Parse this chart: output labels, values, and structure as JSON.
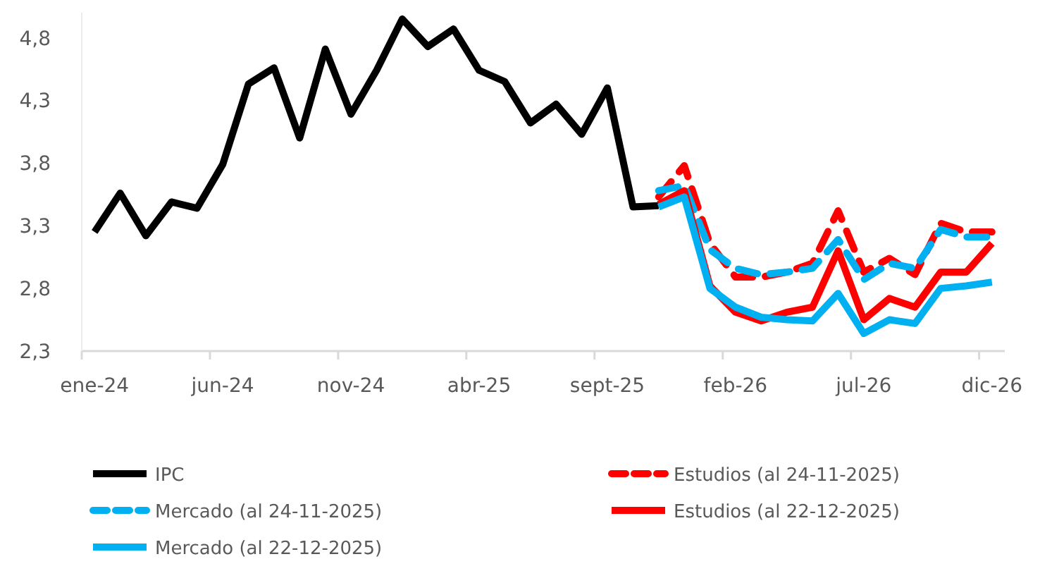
{
  "chart_data": {
    "type": "line",
    "categories": [
      "ene-24",
      null,
      null,
      null,
      null,
      "jun-24",
      null,
      null,
      null,
      null,
      "nov-24",
      null,
      null,
      null,
      null,
      "abr-25",
      null,
      null,
      null,
      null,
      "sept-25",
      null,
      null,
      null,
      null,
      "feb-26",
      null,
      null,
      null,
      null,
      "jul-26",
      null,
      null,
      null,
      null,
      "dic-26"
    ],
    "ylim": [
      2.3,
      5.0
    ],
    "yticks": [
      {
        "value": 2.3,
        "label": "2,3"
      },
      {
        "value": 2.8,
        "label": "2,8"
      },
      {
        "value": 3.3,
        "label": "3,3"
      },
      {
        "value": 3.8,
        "label": "3,8"
      },
      {
        "value": 4.3,
        "label": "4,3"
      },
      {
        "value": 4.8,
        "label": "4,8"
      }
    ],
    "legend": "bottom",
    "series": [
      {
        "name": "IPC",
        "color": "#000000",
        "line_style": "solid",
        "values": [
          3.25,
          3.56,
          3.22,
          3.49,
          3.44,
          3.79,
          4.43,
          4.56,
          4.0,
          4.71,
          4.19,
          4.54,
          4.95,
          4.73,
          4.87,
          4.54,
          4.45,
          4.12,
          4.27,
          4.03,
          4.4,
          3.45,
          3.46,
          null,
          null,
          null,
          null,
          null,
          null,
          null,
          null,
          null,
          null,
          null,
          null,
          null
        ]
      },
      {
        "name": "Estudios (al 24-11-2025)",
        "color": "#ff0000",
        "line_style": "dashed",
        "values": [
          null,
          null,
          null,
          null,
          null,
          null,
          null,
          null,
          null,
          null,
          null,
          null,
          null,
          null,
          null,
          null,
          null,
          null,
          null,
          null,
          null,
          null,
          3.53,
          3.78,
          3.16,
          2.89,
          2.89,
          2.93,
          3.0,
          3.42,
          2.93,
          3.04,
          2.91,
          3.32,
          3.25,
          3.25
        ]
      },
      {
        "name": "Mercado (al 24-11-2025)",
        "color": "#00b0f0",
        "line_style": "dashed",
        "values": [
          null,
          null,
          null,
          null,
          null,
          null,
          null,
          null,
          null,
          null,
          null,
          null,
          null,
          null,
          null,
          null,
          null,
          null,
          null,
          null,
          null,
          null,
          3.58,
          3.62,
          3.11,
          2.96,
          2.91,
          2.93,
          2.96,
          3.19,
          2.87,
          3.0,
          2.96,
          3.27,
          3.21,
          3.21
        ]
      },
      {
        "name": "Estudios (al 22-12-2025)",
        "color": "#ff0000",
        "line_style": "solid",
        "values": [
          null,
          null,
          null,
          null,
          null,
          null,
          null,
          null,
          null,
          null,
          null,
          null,
          null,
          null,
          null,
          null,
          null,
          null,
          null,
          null,
          null,
          null,
          3.47,
          3.58,
          2.82,
          2.61,
          2.54,
          2.61,
          2.65,
          3.1,
          2.55,
          2.72,
          2.65,
          2.93,
          2.93,
          3.16
        ]
      },
      {
        "name": "Mercado (al 22-12-2025)",
        "color": "#00b0f0",
        "line_style": "solid",
        "values": [
          null,
          null,
          null,
          null,
          null,
          null,
          null,
          null,
          null,
          null,
          null,
          null,
          null,
          null,
          null,
          null,
          null,
          null,
          null,
          null,
          null,
          null,
          3.45,
          3.53,
          2.8,
          2.65,
          2.57,
          2.55,
          2.54,
          2.76,
          2.44,
          2.55,
          2.52,
          2.8,
          2.82,
          2.85
        ]
      }
    ]
  }
}
